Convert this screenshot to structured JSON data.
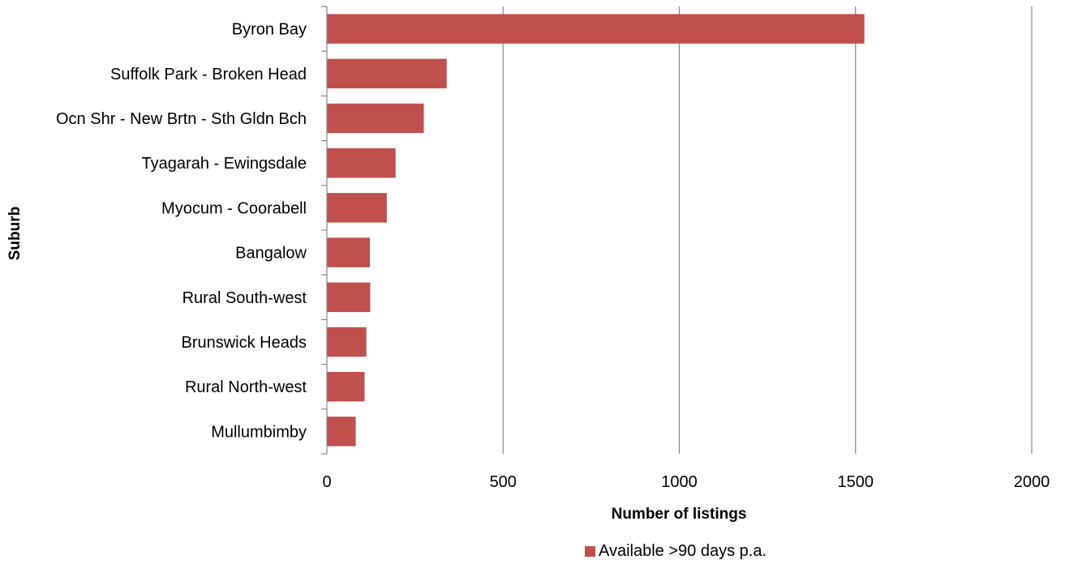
{
  "chart_data": {
    "type": "bar",
    "orientation": "horizontal",
    "categories": [
      "Byron Bay",
      "Suffolk Park - Broken Head",
      "Ocn Shr - New Brtn - Sth Gldn Bch",
      "Tyagarah - Ewingsdale",
      "Myocum - Coorabell",
      "Bangalow",
      "Rural South-west",
      "Brunswick Heads",
      "Rural North-west",
      "Mullumbimby"
    ],
    "series": [
      {
        "name": "Available >90 days p.a.",
        "color": "#c0504d",
        "values": [
          1525,
          340,
          275,
          195,
          170,
          122,
          123,
          112,
          107,
          82
        ]
      }
    ],
    "xlabel": "Number of listings",
    "ylabel": "Suburb",
    "xlim": [
      0,
      2000
    ],
    "xticks": [
      0,
      500,
      1000,
      1500,
      2000
    ],
    "grid": "vertical",
    "legend_position": "bottom"
  }
}
